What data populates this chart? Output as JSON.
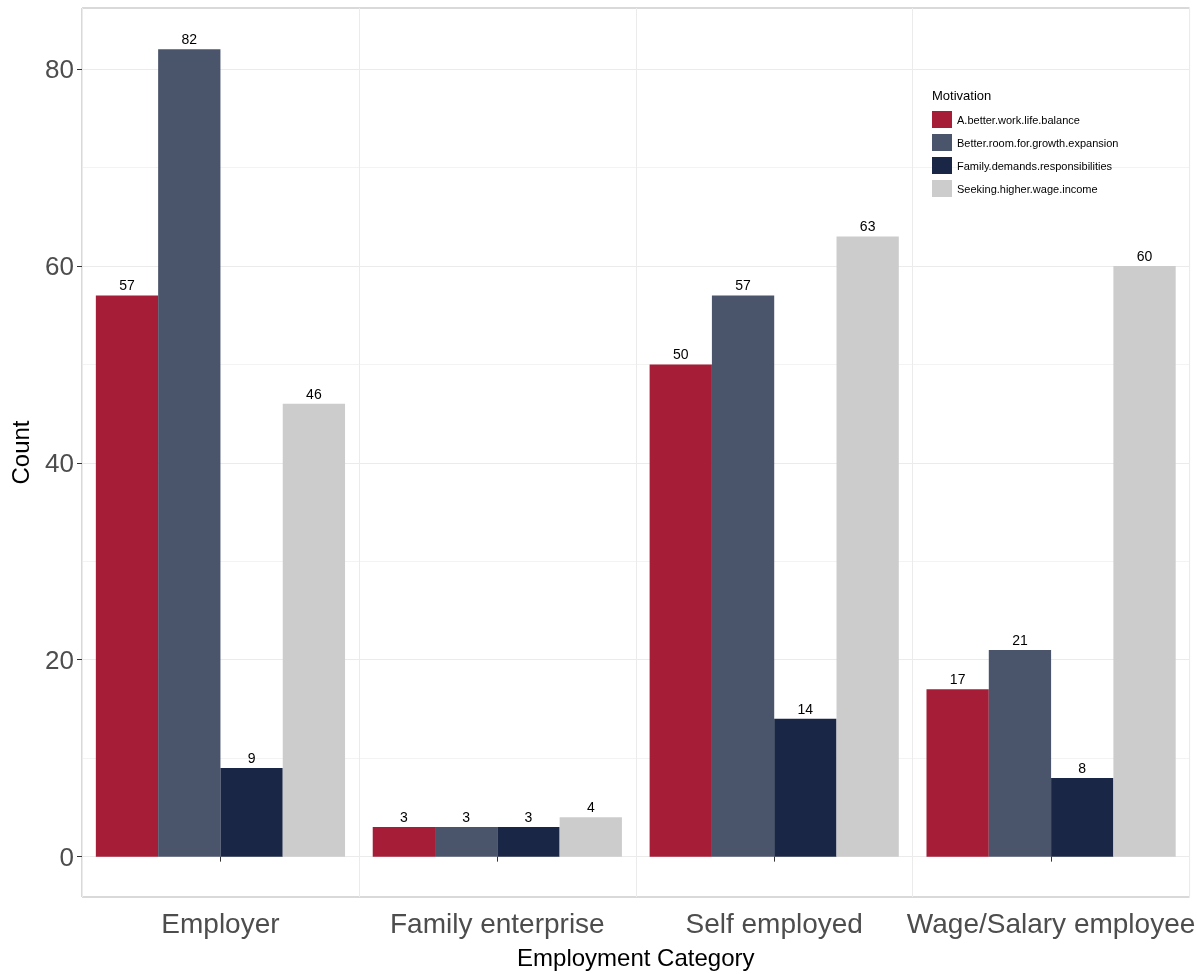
{
  "chart_data": {
    "type": "bar",
    "xlabel": "Employment Category",
    "ylabel": "Count",
    "legend_title": "Motivation",
    "categories": [
      "Employer",
      "Family enterprise",
      "Self employed",
      "Wage/Salary employee"
    ],
    "series": [
      {
        "name": "A.better.work.life.balance",
        "color": "#a51d36",
        "values": [
          57,
          3,
          50,
          17
        ]
      },
      {
        "name": "Better.room.for.growth.expansion",
        "color": "#4a546b",
        "values": [
          82,
          3,
          57,
          21
        ]
      },
      {
        "name": "Family.demands.responsibilities",
        "color": "#1a2645",
        "values": [
          9,
          3,
          14,
          8
        ]
      },
      {
        "name": "Seeking.higher.wage.income",
        "color": "#cccccc",
        "values": [
          46,
          4,
          63,
          60
        ]
      }
    ],
    "ylim": [
      -4.1,
      86.2
    ],
    "yticks": [
      0,
      20,
      40,
      60,
      80
    ],
    "grid": true,
    "legend": "top right",
    "data_labels": true
  }
}
